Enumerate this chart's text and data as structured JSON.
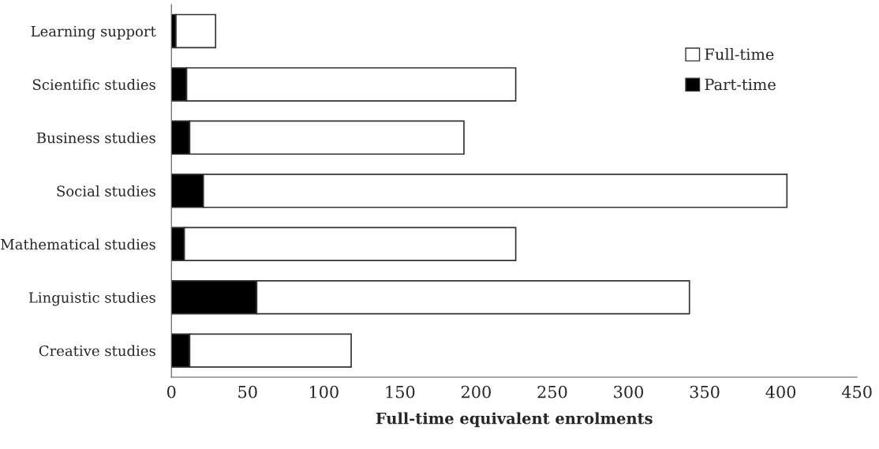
{
  "chart_data": {
    "type": "bar",
    "orientation": "horizontal",
    "stacked": true,
    "xlabel": "Full-time equivalent enrolments",
    "categories": [
      "Learning support",
      "Scientific studies",
      "Business studies",
      "Social studies",
      "Mathematical studies",
      "Linguistic studies",
      "Creative studies"
    ],
    "series": [
      {
        "name": "Part-time",
        "color": "#000000",
        "values": [
          3,
          10,
          12,
          21,
          8.5,
          56,
          12
        ]
      },
      {
        "name": "Full-time",
        "color": "#ffffff",
        "values": [
          26,
          216,
          180,
          383,
          217.5,
          284,
          106
        ]
      }
    ],
    "xlim": [
      0,
      450
    ],
    "xticks": [
      0,
      50,
      100,
      150,
      200,
      250,
      300,
      350,
      400,
      450
    ],
    "legend": "top right",
    "grid": false
  }
}
